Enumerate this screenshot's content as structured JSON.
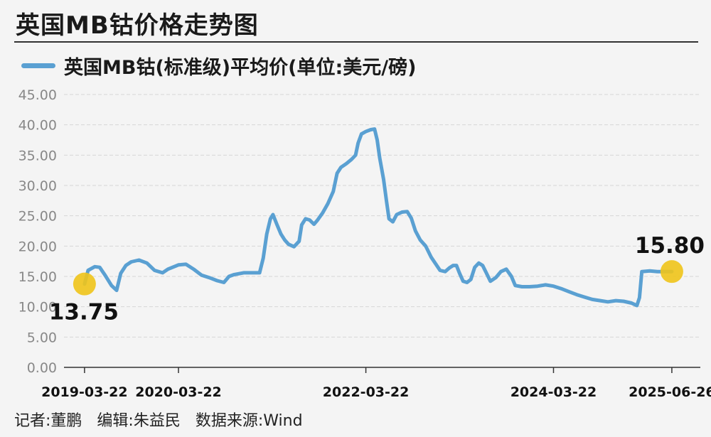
{
  "header": {
    "title": "英国MB钴价格走势图"
  },
  "footer": {
    "reporter": "记者:董鹏",
    "editor": "编辑:朱益民",
    "source": "数据来源:Wind"
  },
  "chart_data": {
    "type": "line",
    "title": "英国MB钴价格走势图",
    "series": [
      {
        "name": "英国MB钴(标准级)平均价(单位:美元/磅)",
        "color": "#5aa0d2",
        "points": [
          [
            "2019-03-22",
            13.75
          ],
          [
            "2019-04-05",
            16.0
          ],
          [
            "2019-05-01",
            16.6
          ],
          [
            "2019-05-20",
            16.5
          ],
          [
            "2019-06-10",
            15.2
          ],
          [
            "2019-07-05",
            13.5
          ],
          [
            "2019-07-25",
            12.7
          ],
          [
            "2019-08-10",
            15.5
          ],
          [
            "2019-08-30",
            16.8
          ],
          [
            "2019-09-20",
            17.4
          ],
          [
            "2019-10-20",
            17.7
          ],
          [
            "2019-11-20",
            17.2
          ],
          [
            "2019-12-20",
            16.0
          ],
          [
            "2020-01-20",
            15.6
          ],
          [
            "2020-02-10",
            16.2
          ],
          [
            "2020-03-22",
            16.9
          ],
          [
            "2020-04-20",
            17.0
          ],
          [
            "2020-05-20",
            16.2
          ],
          [
            "2020-06-20",
            15.2
          ],
          [
            "2020-07-20",
            14.8
          ],
          [
            "2020-08-20",
            14.3
          ],
          [
            "2020-09-15",
            14.0
          ],
          [
            "2020-10-05",
            15.0
          ],
          [
            "2020-10-25",
            15.3
          ],
          [
            "2020-12-01",
            15.6
          ],
          [
            "2021-01-01",
            15.6
          ],
          [
            "2021-02-01",
            15.6
          ],
          [
            "2021-02-15",
            18.0
          ],
          [
            "2021-03-01",
            22.0
          ],
          [
            "2021-03-15",
            24.5
          ],
          [
            "2021-03-25",
            25.2
          ],
          [
            "2021-04-10",
            23.5
          ],
          [
            "2021-04-25",
            22.0
          ],
          [
            "2021-05-10",
            21.0
          ],
          [
            "2021-05-25",
            20.3
          ],
          [
            "2021-06-15",
            19.9
          ],
          [
            "2021-07-05",
            20.8
          ],
          [
            "2021-07-15",
            23.5
          ],
          [
            "2021-07-30",
            24.5
          ],
          [
            "2021-08-15",
            24.3
          ],
          [
            "2021-09-01",
            23.6
          ],
          [
            "2021-09-15",
            24.3
          ],
          [
            "2021-10-05",
            25.5
          ],
          [
            "2021-10-25",
            27.0
          ],
          [
            "2021-11-15",
            29.0
          ],
          [
            "2021-11-30",
            32.0
          ],
          [
            "2021-12-15",
            33.0
          ],
          [
            "2022-01-05",
            33.6
          ],
          [
            "2022-01-25",
            34.3
          ],
          [
            "2022-02-10",
            35.0
          ],
          [
            "2022-02-20",
            37.0
          ],
          [
            "2022-03-05",
            38.5
          ],
          [
            "2022-03-22",
            38.9
          ],
          [
            "2022-04-10",
            39.2
          ],
          [
            "2022-04-25",
            39.3
          ],
          [
            "2022-05-05",
            37.5
          ],
          [
            "2022-05-15",
            34.5
          ],
          [
            "2022-05-30",
            31.0
          ],
          [
            "2022-06-10",
            27.5
          ],
          [
            "2022-06-20",
            24.5
          ],
          [
            "2022-07-05",
            24.0
          ],
          [
            "2022-07-20",
            25.2
          ],
          [
            "2022-08-10",
            25.6
          ],
          [
            "2022-08-30",
            25.7
          ],
          [
            "2022-09-15",
            24.6
          ],
          [
            "2022-10-01",
            22.5
          ],
          [
            "2022-10-20",
            21.0
          ],
          [
            "2022-11-10",
            20.0
          ],
          [
            "2022-12-01",
            18.2
          ],
          [
            "2022-12-20",
            17.0
          ],
          [
            "2023-01-05",
            16.0
          ],
          [
            "2023-01-25",
            15.8
          ],
          [
            "2023-02-10",
            16.4
          ],
          [
            "2023-02-25",
            16.8
          ],
          [
            "2023-03-10",
            16.8
          ],
          [
            "2023-03-22",
            15.5
          ],
          [
            "2023-04-05",
            14.2
          ],
          [
            "2023-04-20",
            14.0
          ],
          [
            "2023-05-05",
            14.5
          ],
          [
            "2023-05-20",
            16.5
          ],
          [
            "2023-06-05",
            17.2
          ],
          [
            "2023-06-20",
            16.8
          ],
          [
            "2023-07-05",
            15.5
          ],
          [
            "2023-07-20",
            14.2
          ],
          [
            "2023-08-10",
            14.8
          ],
          [
            "2023-08-30",
            15.8
          ],
          [
            "2023-09-20",
            16.2
          ],
          [
            "2023-10-10",
            15.0
          ],
          [
            "2023-10-25",
            13.5
          ],
          [
            "2023-11-20",
            13.3
          ],
          [
            "2023-12-20",
            13.3
          ],
          [
            "2024-01-20",
            13.4
          ],
          [
            "2024-02-20",
            13.6
          ],
          [
            "2024-03-22",
            13.4
          ],
          [
            "2024-04-20",
            13.0
          ],
          [
            "2024-05-20",
            12.5
          ],
          [
            "2024-06-20",
            12.0
          ],
          [
            "2024-07-20",
            11.6
          ],
          [
            "2024-08-20",
            11.2
          ],
          [
            "2024-09-20",
            11.0
          ],
          [
            "2024-10-20",
            10.8
          ],
          [
            "2024-11-20",
            11.0
          ],
          [
            "2024-12-20",
            10.9
          ],
          [
            "2025-01-20",
            10.6
          ],
          [
            "2025-02-10",
            10.2
          ],
          [
            "2025-02-20",
            11.5
          ],
          [
            "2025-03-01",
            15.8
          ],
          [
            "2025-04-01",
            15.9
          ],
          [
            "2025-05-01",
            15.8
          ],
          [
            "2025-06-26",
            15.8
          ]
        ]
      }
    ],
    "x_ticks": [
      "2019-03-22",
      "2020-03-22",
      "2022-03-22",
      "2024-03-22",
      "2025-06-26"
    ],
    "y_ticks": [
      "0.00",
      "5.00",
      "10.00",
      "15.00",
      "20.00",
      "25.00",
      "30.00",
      "35.00",
      "40.00",
      "45.00"
    ],
    "ylim": [
      0,
      45
    ],
    "xlim": [
      "2019-01-01",
      "2025-10-15"
    ],
    "grid": {
      "horizontal": true,
      "vertical": false
    },
    "annotations": [
      {
        "date": "2019-03-22",
        "value": 13.75,
        "label": "13.75",
        "marker_color": "#f0c419"
      },
      {
        "date": "2025-06-26",
        "value": 15.8,
        "label": "15.80",
        "marker_color": "#f0c419"
      }
    ],
    "legend": "top-left"
  }
}
